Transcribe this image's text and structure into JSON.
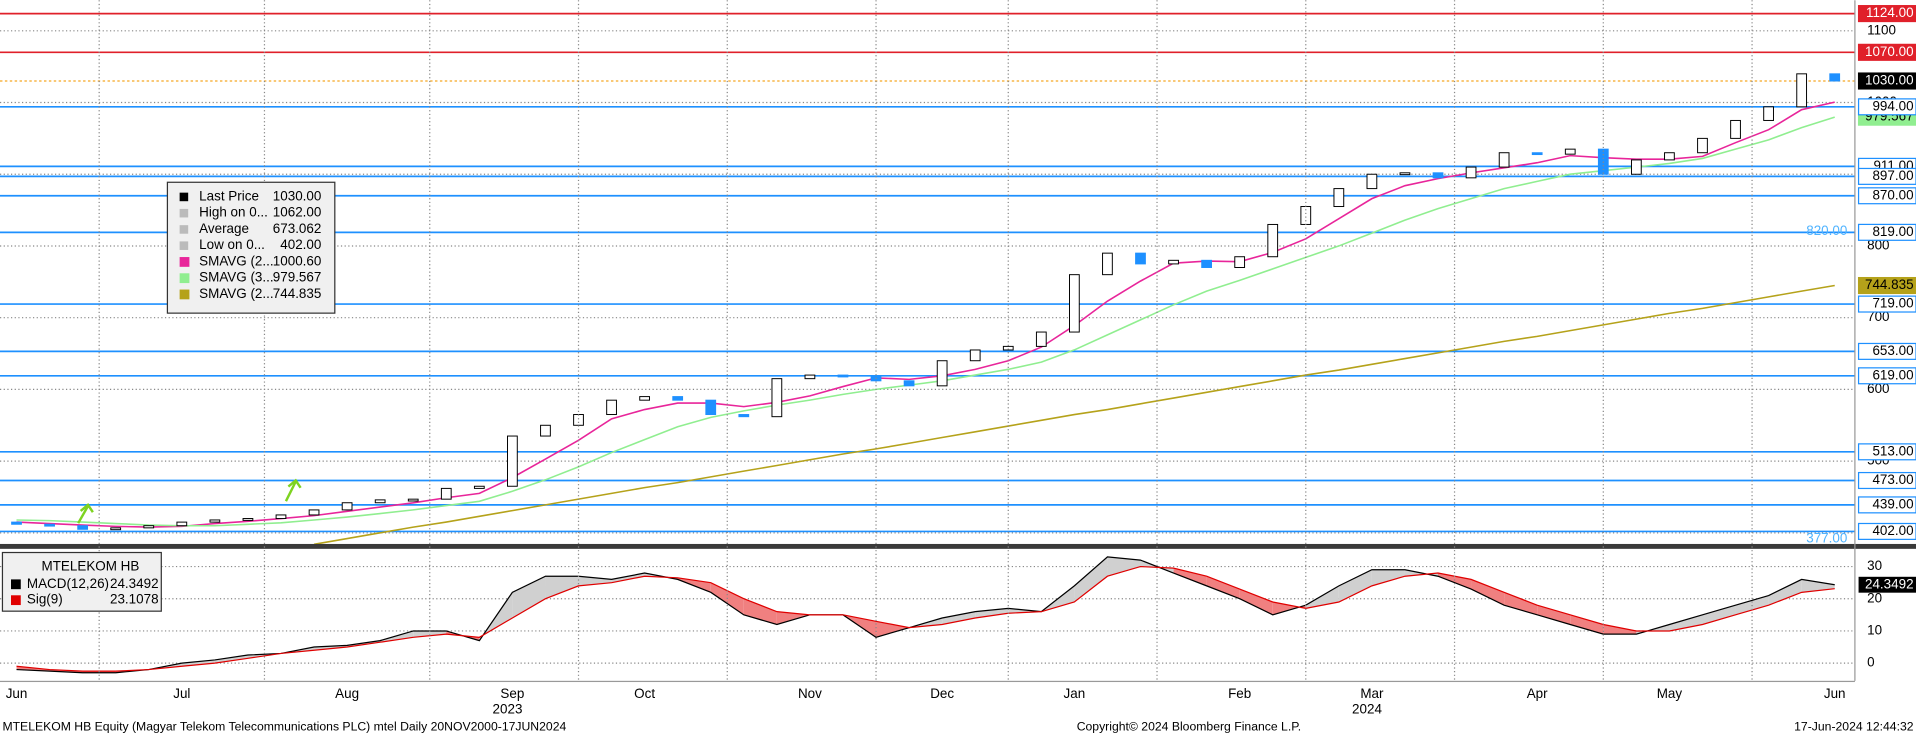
{
  "chart_data": [
    {
      "type": "candlestick",
      "categories": [
        "Jun",
        null,
        null,
        null,
        null,
        "Jul",
        null,
        null,
        null,
        null,
        "Aug",
        null,
        null,
        null,
        null,
        "Sep",
        null,
        null,
        null,
        "Oct",
        null,
        null,
        null,
        null,
        "Nov",
        null,
        null,
        null,
        "Dec",
        null,
        null,
        null,
        "Jan",
        null,
        null,
        null,
        null,
        "Feb",
        null,
        null,
        null,
        "Mar",
        null,
        null,
        null,
        null,
        "Apr",
        null,
        null,
        null,
        "May",
        null,
        null,
        null,
        null,
        "Jun"
      ],
      "years": [
        "2023",
        "2024"
      ],
      "open": [
        415,
        412,
        410,
        405,
        407,
        410,
        415,
        418,
        420,
        425,
        432,
        442,
        446,
        447,
        462,
        465,
        535,
        550,
        565,
        585,
        590,
        585,
        565,
        562,
        615,
        620,
        618,
        612,
        605,
        640,
        655,
        660,
        680,
        760,
        790,
        775,
        780,
        770,
        785,
        830,
        855,
        880,
        900,
        902,
        895,
        910,
        930,
        928,
        935,
        900,
        920,
        930,
        950,
        975,
        994,
        1040
      ],
      "close": [
        412,
        410,
        405,
        407,
        410,
        415,
        418,
        420,
        425,
        432,
        442,
        446,
        447,
        462,
        465,
        535,
        550,
        565,
        585,
        590,
        585,
        565,
        562,
        615,
        620,
        618,
        612,
        605,
        640,
        655,
        660,
        680,
        760,
        790,
        775,
        780,
        770,
        785,
        830,
        855,
        880,
        900,
        902,
        895,
        910,
        930,
        928,
        935,
        900,
        920,
        930,
        950,
        975,
        994,
        1040,
        1030
      ],
      "up_color": "#ffffff",
      "down_color": "#1e90ff",
      "series": [
        {
          "name": "SMAVG (2...",
          "color": "#e8259a",
          "legend_value": "1000.60",
          "end_box": false,
          "values": [
            415,
            413,
            411,
            409,
            408,
            409,
            413,
            416,
            420,
            424,
            430,
            436,
            442,
            449,
            455,
            477,
            503,
            529,
            559,
            572,
            581,
            581,
            576,
            582,
            591,
            604,
            616,
            614,
            619,
            628,
            640,
            659,
            689,
            723,
            751,
            776,
            779,
            778,
            791,
            810,
            838,
            866,
            884,
            894,
            902,
            909,
            916,
            926,
            923,
            921,
            921,
            925,
            944,
            962,
            990,
            1000.6
          ]
        },
        {
          "name": "SMAVG (3...",
          "color": "#90ee90",
          "legend_value": "979.567",
          "end_box": true,
          "values": [
            418,
            417,
            415,
            413,
            411,
            410,
            410,
            412,
            414,
            418,
            422,
            427,
            432,
            438,
            444,
            458,
            474,
            492,
            512,
            530,
            548,
            561,
            570,
            578,
            585,
            593,
            600,
            606,
            612,
            620,
            628,
            638,
            655,
            676,
            697,
            718,
            737,
            752,
            768,
            784,
            800,
            818,
            836,
            852,
            866,
            880,
            890,
            900,
            905,
            910,
            915,
            922,
            935,
            948,
            965,
            979.567
          ]
        },
        {
          "name": "SMAVG (2...",
          "color": "#b5a21a",
          "legend_value": "744.835",
          "end_box": true,
          "values": [
            null,
            null,
            null,
            null,
            null,
            null,
            null,
            null,
            null,
            384,
            392,
            400,
            408,
            415,
            423,
            431,
            439,
            447,
            455,
            463,
            470,
            478,
            486,
            494,
            502,
            510,
            517,
            525,
            533,
            541,
            549,
            557,
            565,
            572,
            580,
            588,
            596,
            604,
            612,
            620,
            627,
            635,
            643,
            651,
            659,
            667,
            674,
            682,
            690,
            698,
            706,
            713,
            721,
            729,
            737,
            744.835
          ]
        }
      ],
      "legend": [
        {
          "label": "Last Price",
          "value": "1030.00"
        },
        {
          "label": "High on 0...",
          "value": "1062.00"
        },
        {
          "label": "Average",
          "value": "673.062"
        },
        {
          "label": "Low on 0...",
          "value": "402.00"
        }
      ],
      "levels": [
        {
          "value": 1124,
          "label": "1124.00",
          "color": "#e0202a",
          "line_color": "#e0202a",
          "line": "solid",
          "style": "filled"
        },
        {
          "value": 1070,
          "label": "1070.00",
          "color": "#e0202a",
          "line_color": "#e0202a",
          "line": "solid",
          "style": "filled"
        },
        {
          "value": 1030,
          "label": "1030.00",
          "color": "#000000",
          "line_color": "#f5a623",
          "line": "dotted",
          "style": "filled"
        },
        {
          "value": 994,
          "label": "994.00",
          "color": "#1e90ff",
          "line_color": "#1e90ff",
          "line": "solid",
          "style": "outline"
        },
        {
          "value": 911,
          "label": "911.00",
          "color": "#1e90ff",
          "line_color": "#1e90ff",
          "line": "solid",
          "style": "outline"
        },
        {
          "value": 897,
          "label": "897.00",
          "color": "#1e90ff",
          "line_color": "#1e90ff",
          "line": "solid",
          "style": "outline"
        },
        {
          "value": 870,
          "label": "870.00",
          "color": "#1e90ff",
          "line_color": "#1e90ff",
          "line": "solid",
          "style": "outline"
        },
        {
          "value": 819,
          "label": "819.00",
          "color": "#1e90ff",
          "line_color": "#1e90ff",
          "line": "solid",
          "style": "outline"
        },
        {
          "value": 719,
          "label": "719.00",
          "color": "#1e90ff",
          "line_color": "#1e90ff",
          "line": "solid",
          "style": "outline"
        },
        {
          "value": 653,
          "label": "653.00",
          "color": "#1e90ff",
          "line_color": "#1e90ff",
          "line": "solid",
          "style": "outline"
        },
        {
          "value": 619,
          "label": "619.00",
          "color": "#1e90ff",
          "line_color": "#1e90ff",
          "line": "solid",
          "style": "outline"
        },
        {
          "value": 513,
          "label": "513.00",
          "color": "#1e90ff",
          "line_color": "#1e90ff",
          "line": "solid",
          "style": "outline"
        },
        {
          "value": 473,
          "label": "473.00",
          "color": "#1e90ff",
          "line_color": "#1e90ff",
          "line": "solid",
          "style": "outline"
        },
        {
          "value": 439,
          "label": "439.00",
          "color": "#1e90ff",
          "line_color": "#1e90ff",
          "line": "solid",
          "style": "outline"
        },
        {
          "value": 402,
          "label": "402.00",
          "color": "#1e90ff",
          "line_color": "#1e90ff",
          "line": "solid",
          "style": "outline"
        }
      ],
      "annotations": [
        {
          "text": "820.00",
          "value": 820,
          "color": "#4fb3ff"
        },
        {
          "text": "377.00",
          "value": 377,
          "color": "#4fb3ff"
        }
      ],
      "ylim": [
        375,
        1135
      ],
      "yticks": [
        400,
        500,
        600,
        700,
        800,
        900,
        1000,
        1100
      ],
      "grid": true
    },
    {
      "type": "line",
      "title": "MTELEKOM HB",
      "series": [
        {
          "name": "MACD(12,26)",
          "color": "#000000",
          "last_label": "24.3492",
          "values": [
            -2,
            -2.5,
            -3,
            -3,
            -2,
            0,
            1,
            2.5,
            3,
            5,
            5.5,
            7,
            10,
            10,
            7,
            22,
            27,
            27,
            26,
            28,
            26,
            22,
            15,
            12,
            15,
            15,
            8,
            11,
            14,
            16,
            17,
            16,
            24,
            33,
            32,
            28,
            24,
            20,
            15,
            18,
            24,
            29,
            29,
            27,
            23,
            18,
            15,
            12,
            9,
            9,
            12,
            15,
            18,
            21,
            26,
            24.3492
          ]
        },
        {
          "name": "Sig(9)",
          "color": "#e00000",
          "last_label": "23.1078",
          "values": [
            -1,
            -2,
            -2.5,
            -2.5,
            -2,
            -1,
            0,
            1.5,
            3,
            4,
            5,
            6.5,
            8,
            9,
            8,
            14,
            20,
            24,
            25,
            27,
            26.5,
            25,
            20,
            16,
            15,
            15,
            13,
            11,
            12,
            14,
            15.5,
            16,
            19,
            27,
            30,
            29.5,
            27,
            23,
            19,
            17,
            19,
            24,
            27,
            28,
            26,
            22,
            18,
            15,
            12,
            10,
            10,
            12,
            15,
            18,
            22,
            23.1078
          ]
        }
      ],
      "above_color": "#d0d0d0",
      "below_color": "#f08080",
      "ylim": [
        -5.5,
        35.5
      ],
      "yticks": [
        0,
        10,
        20,
        30
      ],
      "grid": true
    }
  ],
  "footer": {
    "left": "MTELEKOM HB Equity (Magyar Telekom Telecommunications PLC) mtel  Daily 20NOV2000-17JUN2024",
    "center": "Copyright© 2024 Bloomberg Finance L.P.",
    "right": "17-Jun-2024 12:44:32"
  }
}
